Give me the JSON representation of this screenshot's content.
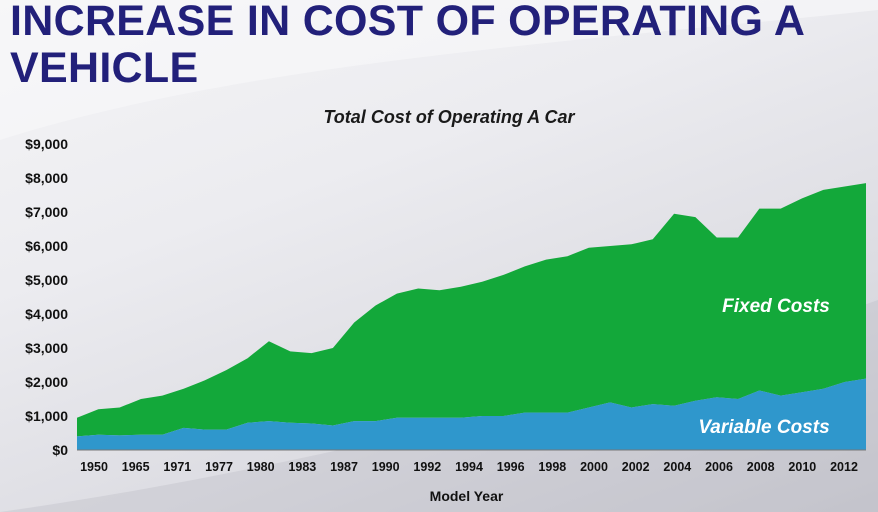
{
  "slide": {
    "title": "INCREASE IN COST OF OPERATING A VEHICLE",
    "title_color": "#22207a"
  },
  "chart_data": {
    "type": "area",
    "title": "Total Cost of Operating A Car",
    "xlabel": "Model Year",
    "ylabel": "",
    "ylim": [
      0,
      9000
    ],
    "yticks": [
      0,
      1000,
      2000,
      3000,
      4000,
      5000,
      6000,
      7000,
      8000,
      9000
    ],
    "ytick_labels": [
      "$0",
      "$1,000",
      "$2,000",
      "$3,000",
      "$4,000",
      "$5,000",
      "$6,000",
      "$7,000",
      "$8,000",
      "$9,000"
    ],
    "xtick_labels": [
      "1950",
      "1965",
      "1971",
      "1977",
      "1980",
      "1983",
      "1987",
      "1990",
      "1992",
      "1994",
      "1996",
      "1998",
      "2000",
      "2002",
      "2004",
      "2006",
      "2008",
      "2010",
      "2012"
    ],
    "stacked": true,
    "colors": {
      "fixed": "#13a83a",
      "variable": "#2f97cc"
    },
    "series": [
      {
        "name": "Variable Costs",
        "values": [
          400,
          450,
          430,
          450,
          450,
          650,
          600,
          600,
          800,
          850,
          800,
          780,
          720,
          850,
          850,
          950,
          950,
          950,
          950,
          1000,
          1000,
          1100,
          1100,
          1100,
          1250,
          1400,
          1250,
          1350,
          1300,
          1450,
          1550,
          1500,
          1750,
          1600,
          1700,
          1800,
          2000,
          2100
        ]
      },
      {
        "name": "Fixed Costs",
        "values": [
          550,
          750,
          820,
          1050,
          1150,
          1150,
          1450,
          1750,
          1900,
          2350,
          2100,
          2070,
          2280,
          2900,
          3400,
          3650,
          3800,
          3750,
          3850,
          3950,
          4150,
          4300,
          4500,
          4600,
          4700,
          4600,
          4800,
          4850,
          5650,
          5400,
          4700,
          4750,
          5350,
          5500,
          5700,
          5850,
          5750,
          5750
        ]
      }
    ]
  }
}
